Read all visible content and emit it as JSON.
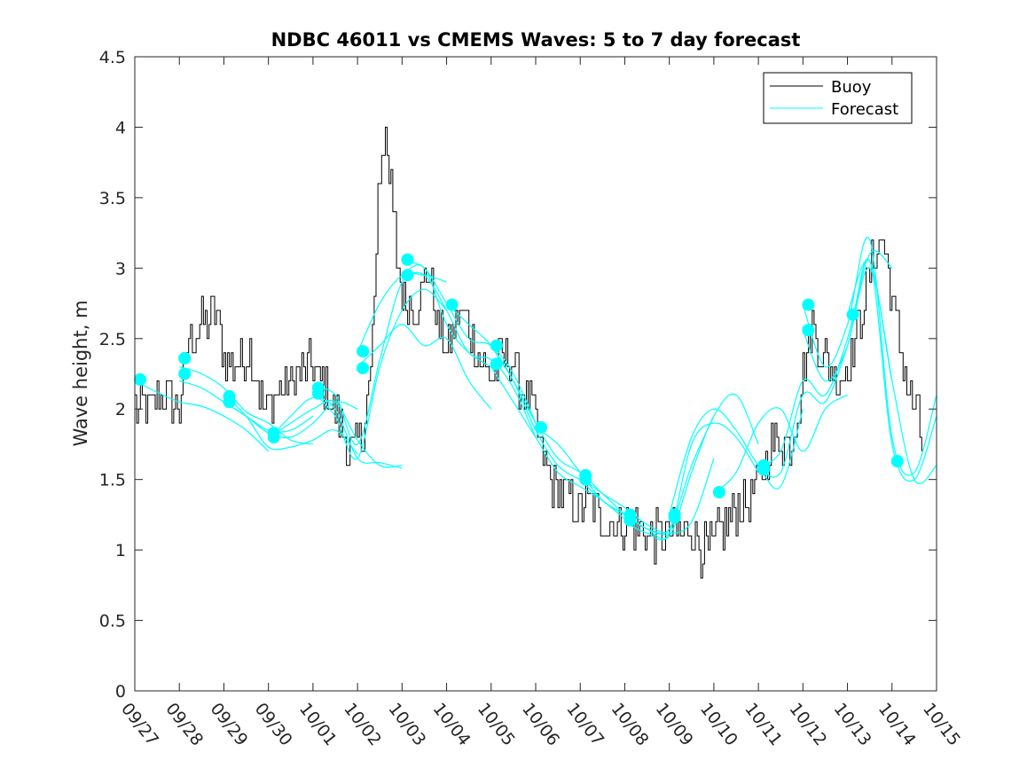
{
  "chart_data": {
    "type": "line",
    "title": "NDBC 46011 vs CMEMS Waves: 5 to 7 day forecast",
    "xlabel": "",
    "ylabel": "Wave height, m",
    "xlim": [
      0,
      18
    ],
    "ylim": [
      0,
      4.5
    ],
    "yticks": [
      0,
      0.5,
      1,
      1.5,
      2,
      2.5,
      3,
      3.5,
      4,
      4.5
    ],
    "ytick_labels": [
      "0",
      "0.5",
      "1",
      "1.5",
      "2",
      "2.5",
      "3",
      "3.5",
      "4",
      "4.5"
    ],
    "xticks": [
      0,
      1,
      2,
      3,
      4,
      5,
      6,
      7,
      8,
      9,
      10,
      11,
      12,
      13,
      14,
      15,
      16,
      17,
      18
    ],
    "xtick_labels": [
      "09/27",
      "09/28",
      "09/29",
      "09/30",
      "10/01",
      "10/02",
      "10/03",
      "10/04",
      "10/05",
      "10/06",
      "10/07",
      "10/08",
      "10/09",
      "10/10",
      "10/11",
      "10/12",
      "10/13",
      "10/14",
      "10/15"
    ],
    "grid": false,
    "legend": {
      "position": "top-right",
      "entries": [
        {
          "label": "Buoy",
          "color": "#000000"
        },
        {
          "label": "Forecast",
          "color": "#00FFFF"
        }
      ]
    },
    "colors": {
      "buoy": "#000000",
      "forecast": "#00FFFF",
      "marker": "#00FFFF"
    },
    "buoy_anchor_points": [
      [
        0.0,
        2.0
      ],
      [
        0.3,
        2.0
      ],
      [
        0.6,
        2.1
      ],
      [
        1.0,
        2.0
      ],
      [
        1.2,
        2.5
      ],
      [
        1.5,
        2.6
      ],
      [
        1.8,
        2.7
      ],
      [
        2.0,
        2.4
      ],
      [
        2.3,
        2.3
      ],
      [
        2.6,
        2.4
      ],
      [
        2.9,
        2.0
      ],
      [
        3.2,
        2.1
      ],
      [
        3.5,
        2.2
      ],
      [
        3.9,
        2.3
      ],
      [
        4.2,
        2.2
      ],
      [
        4.5,
        2.0
      ],
      [
        4.8,
        1.7
      ],
      [
        5.1,
        1.8
      ],
      [
        5.3,
        2.3
      ],
      [
        5.5,
        3.6
      ],
      [
        5.65,
        4.0
      ],
      [
        5.8,
        3.2
      ],
      [
        6.0,
        2.8
      ],
      [
        6.2,
        2.7
      ],
      [
        6.4,
        2.8
      ],
      [
        6.6,
        3.0
      ],
      [
        6.8,
        2.6
      ],
      [
        7.0,
        2.4
      ],
      [
        7.2,
        2.6
      ],
      [
        7.4,
        2.7
      ],
      [
        7.6,
        2.5
      ],
      [
        7.8,
        2.3
      ],
      [
        8.0,
        2.2
      ],
      [
        8.2,
        2.35
      ],
      [
        8.4,
        2.4
      ],
      [
        8.6,
        2.2
      ],
      [
        8.8,
        2.1
      ],
      [
        9.0,
        1.9
      ],
      [
        9.2,
        1.6
      ],
      [
        9.4,
        1.45
      ],
      [
        9.6,
        1.4
      ],
      [
        9.8,
        1.35
      ],
      [
        10.0,
        1.3
      ],
      [
        10.2,
        1.35
      ],
      [
        10.4,
        1.25
      ],
      [
        10.6,
        1.2
      ],
      [
        10.8,
        1.2
      ],
      [
        11.0,
        1.2
      ],
      [
        11.3,
        1.15
      ],
      [
        11.6,
        1.1
      ],
      [
        11.9,
        1.1
      ],
      [
        12.1,
        1.1
      ],
      [
        12.3,
        1.1
      ],
      [
        12.5,
        1.2
      ],
      [
        12.7,
        1.0
      ],
      [
        12.9,
        1.0
      ],
      [
        13.1,
        1.1
      ],
      [
        13.3,
        1.2
      ],
      [
        13.5,
        1.3
      ],
      [
        13.7,
        1.3
      ],
      [
        13.9,
        1.4
      ],
      [
        14.1,
        1.6
      ],
      [
        14.3,
        1.75
      ],
      [
        14.5,
        1.8
      ],
      [
        14.7,
        1.7
      ],
      [
        14.9,
        2.0
      ],
      [
        15.0,
        2.3
      ],
      [
        15.2,
        2.6
      ],
      [
        15.4,
        2.4
      ],
      [
        15.6,
        2.3
      ],
      [
        15.8,
        2.2
      ],
      [
        16.0,
        2.3
      ],
      [
        16.2,
        2.5
      ],
      [
        16.4,
        2.8
      ],
      [
        16.6,
        3.1
      ],
      [
        16.8,
        3.2
      ],
      [
        17.0,
        2.8
      ],
      [
        17.2,
        2.4
      ],
      [
        17.4,
        2.1
      ],
      [
        17.6,
        1.9
      ],
      [
        17.7,
        1.7
      ]
    ],
    "buoy_noise_amplitude": 0.17,
    "forecast_series": [
      {
        "name": "Forecast",
        "x": [
          0.0,
          0.5,
          1.0,
          1.5,
          2.0,
          2.5,
          3.0
        ],
        "y": [
          2.2,
          2.12,
          2.05,
          2.02,
          1.95,
          1.85,
          1.7
        ]
      },
      {
        "name": "Forecast",
        "x": [
          1.0,
          1.5,
          2.0,
          2.5,
          3.0,
          3.5,
          4.0
        ],
        "y": [
          2.3,
          2.25,
          2.15,
          1.98,
          1.9,
          1.78,
          1.75
        ]
      },
      {
        "name": "Forecast",
        "x": [
          1.0,
          1.5,
          2.0,
          2.5,
          3.0,
          3.5,
          4.0
        ],
        "y": [
          2.2,
          2.15,
          2.05,
          1.95,
          1.85,
          1.85,
          1.95
        ]
      },
      {
        "name": "Forecast",
        "x": [
          2.0,
          2.5,
          3.0,
          3.5,
          4.0,
          4.5,
          5.0
        ],
        "y": [
          2.05,
          1.95,
          1.83,
          1.8,
          1.9,
          2.05,
          2.0
        ]
      },
      {
        "name": "Forecast",
        "x": [
          2.0,
          2.5,
          3.0,
          3.5,
          4.0,
          4.5,
          5.0
        ],
        "y": [
          2.1,
          1.95,
          1.73,
          1.73,
          1.78,
          1.85,
          1.68
        ]
      },
      {
        "name": "Forecast",
        "x": [
          3.0,
          3.5,
          4.0,
          4.5,
          5.0,
          5.5,
          6.0
        ],
        "y": [
          1.8,
          1.9,
          2.0,
          2.05,
          1.78,
          1.6,
          1.6
        ]
      },
      {
        "name": "Forecast",
        "x": [
          3.0,
          3.5,
          4.0,
          4.5,
          5.0,
          5.5,
          6.0
        ],
        "y": [
          1.78,
          1.95,
          2.08,
          2.0,
          1.65,
          1.62,
          1.58
        ]
      },
      {
        "name": "Forecast",
        "x": [
          4.0,
          4.5,
          5.0,
          5.5,
          6.0,
          6.5,
          7.0
        ],
        "y": [
          2.15,
          2.1,
          1.75,
          2.35,
          2.9,
          2.95,
          2.9
        ]
      },
      {
        "name": "Forecast",
        "x": [
          4.0,
          4.5,
          5.0,
          5.5,
          6.0,
          6.5,
          7.0
        ],
        "y": [
          2.12,
          1.95,
          1.65,
          2.3,
          2.7,
          2.85,
          2.7
        ]
      },
      {
        "name": "Forecast",
        "x": [
          5.0,
          5.5,
          6.0,
          6.5,
          7.0,
          7.5,
          8.0
        ],
        "y": [
          2.4,
          2.75,
          2.95,
          3.0,
          2.6,
          2.4,
          2.3
        ]
      },
      {
        "name": "Forecast",
        "x": [
          5.0,
          5.5,
          6.0,
          6.5,
          7.0,
          7.5,
          8.0
        ],
        "y": [
          2.3,
          2.45,
          2.6,
          2.45,
          2.5,
          2.2,
          2.0
        ]
      },
      {
        "name": "Forecast",
        "x": [
          6.0,
          6.5,
          7.0,
          7.5,
          8.0,
          8.5,
          9.0
        ],
        "y": [
          3.05,
          3.0,
          2.75,
          2.5,
          2.45,
          2.25,
          1.9
        ]
      },
      {
        "name": "Forecast",
        "x": [
          6.0,
          6.5,
          7.0,
          7.5,
          8.0,
          8.5,
          9.0
        ],
        "y": [
          2.95,
          2.95,
          2.7,
          2.4,
          2.35,
          2.15,
          1.8
        ]
      },
      {
        "name": "Forecast",
        "x": [
          7.0,
          7.5,
          8.0,
          8.5,
          9.0,
          9.5,
          10.0
        ],
        "y": [
          2.75,
          2.6,
          2.45,
          2.2,
          1.85,
          1.6,
          1.5
        ]
      },
      {
        "name": "Forecast",
        "x": [
          8.0,
          8.5,
          9.0,
          9.5,
          10.0,
          10.5,
          11.0
        ],
        "y": [
          2.45,
          2.2,
          1.9,
          1.65,
          1.55,
          1.4,
          1.25
        ]
      },
      {
        "name": "Forecast",
        "x": [
          8.0,
          8.5,
          9.0,
          9.5,
          10.0,
          10.5,
          11.0
        ],
        "y": [
          2.3,
          2.05,
          1.8,
          1.55,
          1.45,
          1.35,
          1.22
        ]
      },
      {
        "name": "Forecast",
        "x": [
          9.0,
          9.5,
          10.0,
          10.5,
          11.0,
          11.5,
          12.0
        ],
        "y": [
          1.87,
          1.75,
          1.55,
          1.35,
          1.25,
          1.15,
          1.1
        ]
      },
      {
        "name": "Forecast",
        "x": [
          10.0,
          10.5,
          11.0,
          11.5,
          12.0,
          12.5,
          13.0
        ],
        "y": [
          1.52,
          1.4,
          1.3,
          1.18,
          1.12,
          1.2,
          1.65
        ]
      },
      {
        "name": "Forecast",
        "x": [
          10.0,
          10.5,
          11.0,
          11.5,
          12.0,
          12.5,
          13.0
        ],
        "y": [
          1.5,
          1.35,
          1.25,
          1.15,
          1.15,
          1.6,
          1.95
        ]
      },
      {
        "name": "Forecast",
        "x": [
          11.0,
          11.5,
          12.0,
          12.5,
          13.0,
          13.5,
          14.0
        ],
        "y": [
          1.25,
          1.15,
          1.1,
          1.55,
          1.95,
          2.1,
          1.75
        ]
      },
      {
        "name": "Forecast",
        "x": [
          11.0,
          11.5,
          12.0,
          12.5,
          13.0,
          13.5,
          14.0
        ],
        "y": [
          1.2,
          1.12,
          1.12,
          1.75,
          1.9,
          1.8,
          1.55
        ]
      },
      {
        "name": "Forecast",
        "x": [
          12.0,
          12.5,
          13.0,
          13.5,
          14.0,
          14.5,
          15.0
        ],
        "y": [
          1.25,
          1.8,
          2.0,
          1.85,
          1.6,
          1.45,
          2.0
        ]
      },
      {
        "name": "Forecast",
        "x": [
          13.0,
          13.5,
          14.0,
          14.5,
          15.0,
          15.5,
          16.0
        ],
        "y": [
          1.4,
          1.55,
          1.9,
          2.0,
          1.7,
          2.0,
          2.1
        ]
      },
      {
        "name": "Forecast",
        "x": [
          14.0,
          14.5,
          15.0,
          15.5,
          16.0,
          16.5,
          17.0
        ],
        "y": [
          1.6,
          1.7,
          2.2,
          2.1,
          2.5,
          3.1,
          3.0
        ]
      },
      {
        "name": "Forecast",
        "x": [
          14.0,
          14.5,
          15.0,
          15.5,
          16.0,
          16.5,
          17.0
        ],
        "y": [
          1.58,
          1.55,
          2.1,
          2.05,
          2.45,
          3.0,
          2.2
        ]
      },
      {
        "name": "Forecast",
        "x": [
          15.0,
          15.5,
          16.0,
          16.5,
          17.0,
          17.5,
          18.0
        ],
        "y": [
          2.74,
          2.3,
          2.6,
          3.2,
          1.8,
          1.55,
          2.1
        ]
      },
      {
        "name": "Forecast",
        "x": [
          15.0,
          15.5,
          16.0,
          16.5,
          17.0,
          17.5,
          18.0
        ],
        "y": [
          2.56,
          2.2,
          2.45,
          3.05,
          1.75,
          1.5,
          1.95
        ]
      },
      {
        "name": "Forecast",
        "x": [
          16.0,
          16.5,
          17.0,
          17.5,
          18.0
        ],
        "y": [
          2.67,
          3.05,
          2.2,
          1.5,
          1.6
        ]
      }
    ],
    "forecast_markers": [
      [
        0.12,
        2.21
      ],
      [
        1.12,
        2.36
      ],
      [
        1.12,
        2.25
      ],
      [
        2.12,
        2.09
      ],
      [
        2.12,
        2.05
      ],
      [
        3.12,
        1.83
      ],
      [
        3.12,
        1.8
      ],
      [
        4.12,
        2.15
      ],
      [
        4.12,
        2.11
      ],
      [
        5.12,
        2.41
      ],
      [
        5.12,
        2.29
      ],
      [
        6.12,
        3.06
      ],
      [
        6.12,
        2.95
      ],
      [
        7.12,
        2.74
      ],
      [
        8.12,
        2.45
      ],
      [
        8.12,
        2.32
      ],
      [
        9.12,
        1.87
      ],
      [
        10.12,
        1.53
      ],
      [
        10.12,
        1.5
      ],
      [
        11.12,
        1.25
      ],
      [
        11.12,
        1.21
      ],
      [
        12.12,
        1.25
      ],
      [
        12.12,
        1.23
      ],
      [
        13.12,
        1.41
      ],
      [
        14.12,
        1.6
      ],
      [
        14.12,
        1.57
      ],
      [
        15.12,
        2.74
      ],
      [
        15.12,
        2.56
      ],
      [
        16.12,
        2.67
      ],
      [
        17.12,
        1.63
      ]
    ]
  }
}
